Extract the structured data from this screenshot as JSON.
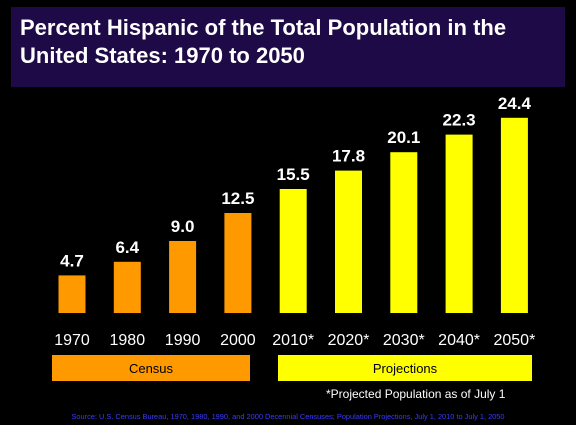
{
  "chart_data": {
    "type": "bar",
    "title": "Percent Hispanic of the Total Population in the United States: 1970 to 2050",
    "categories": [
      "1970",
      "1980",
      "1990",
      "2000",
      "2010*",
      "2020*",
      "2030*",
      "2040*",
      "2050*"
    ],
    "values": [
      4.7,
      6.4,
      9.0,
      12.5,
      15.5,
      17.8,
      20.1,
      22.3,
      24.4
    ],
    "value_labels": [
      "4.7",
      "6.4",
      "9.0",
      "12.5",
      "15.5",
      "17.8",
      "20.1",
      "22.3",
      "24.4"
    ],
    "groups": [
      {
        "label": "Census",
        "color": "#ff9900",
        "categories": [
          "1970",
          "1980",
          "1990",
          "2000"
        ]
      },
      {
        "label": "Projections",
        "color": "#ffff00",
        "categories": [
          "2010*",
          "2020*",
          "2030*",
          "2040*",
          "2050*"
        ]
      }
    ],
    "xlabel": "",
    "ylabel": "",
    "ylim": [
      0,
      26
    ],
    "grid": false
  },
  "footnote": "*Projected Population as of July 1",
  "source": "Source: U.S. Census Bureau, 1970, 1980, 1990, and 2000 Decennial Censuses; Population Projections, July 1, 2010 to July 1, 2050",
  "colors": {
    "background": "#000000",
    "title_background": "#1e0a46",
    "census": "#ff9900",
    "projections": "#ffff00",
    "source_text": "#3a3aff"
  }
}
